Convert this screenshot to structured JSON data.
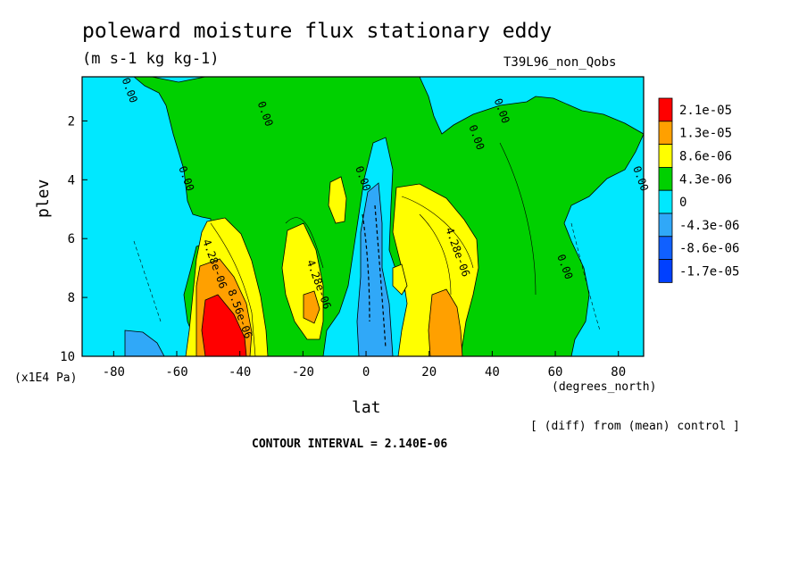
{
  "header": {
    "title": "poleward moisture flux stationary eddy",
    "units": "(m s-1 kg kg-1)",
    "run": "T39L96_non_Qobs"
  },
  "axes": {
    "xlabel": "lat",
    "ylabel": "plev",
    "yunit": "(x1E4 Pa)",
    "xunit": "(degrees_north)"
  },
  "footer": {
    "diff": "[ (diff) from (mean) control ]",
    "contour_interval": "CONTOUR INTERVAL = 2.140E-06"
  },
  "chart_data": {
    "type": "heatmap",
    "title": "poleward moisture flux stationary eddy",
    "xlabel": "lat",
    "ylabel": "plev",
    "xlim": [
      -90,
      88
    ],
    "ylim": [
      10,
      0.5
    ],
    "x_ticks": [
      -80,
      -60,
      -40,
      -20,
      0,
      20,
      40,
      60,
      80
    ],
    "x_tick_labels": [
      "-80",
      "-60",
      "-40",
      "-20",
      "0",
      "20",
      "40",
      "60",
      "80"
    ],
    "y_ticks": [
      2,
      4,
      6,
      8,
      10
    ],
    "y_tick_labels": [
      "2",
      "4",
      "6",
      "8",
      "10"
    ],
    "legend": {
      "placement": "right",
      "levels": [
        "2.1e-05",
        "1.3e-05",
        "8.6e-06",
        "4.3e-06",
        "0",
        "-4.3e-06",
        "-8.6e-06",
        "-1.7e-05"
      ],
      "colors": [
        "#ff0000",
        "#ffa000",
        "#ffff00",
        "#00d000",
        "#00e8ff",
        "#30a8f8",
        "#1060ff",
        "#0040ff"
      ]
    },
    "contour_labels": [
      {
        "text": "0.00",
        "x": -76,
        "y": 1.0
      },
      {
        "text": "0.00",
        "x": -33,
        "y": 1.8
      },
      {
        "text": "0.00",
        "x": -58,
        "y": 4.0
      },
      {
        "text": "0.00",
        "x": -2,
        "y": 4.0
      },
      {
        "text": "0.00",
        "x": 42,
        "y": 1.7
      },
      {
        "text": "0.00",
        "x": 34,
        "y": 2.6
      },
      {
        "text": "0.00",
        "x": 86,
        "y": 4.0
      },
      {
        "text": "0.00",
        "x": 62,
        "y": 7.0
      },
      {
        "text": "4.28e-06",
        "x": -49,
        "y": 6.9
      },
      {
        "text": "8.56e-06",
        "x": -41,
        "y": 8.6
      },
      {
        "text": "4.28e-06",
        "x": -16,
        "y": 7.6
      },
      {
        "text": "4.28e-06",
        "x": 28,
        "y": 6.5
      }
    ]
  }
}
